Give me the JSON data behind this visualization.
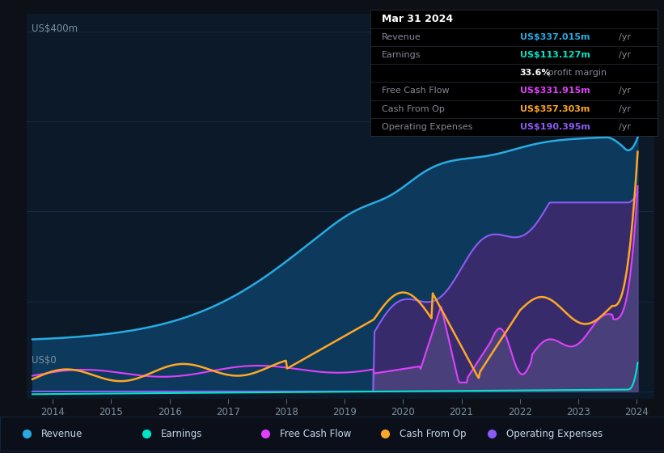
{
  "bg_color": "#0d1117",
  "plot_bg_color": "#0b1929",
  "grid_color": "#1a2e47",
  "title_date": "Mar 31 2024",
  "ylabel": "US$400m",
  "ylabel0": "US$0",
  "ylim": [
    -8,
    420
  ],
  "xlim": [
    2013.55,
    2024.3
  ],
  "xticks": [
    2014,
    2015,
    2016,
    2017,
    2018,
    2019,
    2020,
    2021,
    2022,
    2023,
    2024
  ],
  "revenue_color": "#29abe2",
  "revenue_fill": "#0d3a5c",
  "earnings_color": "#00e5c8",
  "fcf_color": "#e040fb",
  "cfo_color": "#ffa726",
  "opex_color": "#8b5cf6",
  "opex_fill": "#3d2a6e",
  "fcf_fill": "#5a5080",
  "legend": [
    {
      "label": "Revenue",
      "color": "#29abe2"
    },
    {
      "label": "Earnings",
      "color": "#00e5c8"
    },
    {
      "label": "Free Cash Flow",
      "color": "#e040fb"
    },
    {
      "label": "Cash From Op",
      "color": "#ffa726"
    },
    {
      "label": "Operating Expenses",
      "color": "#8b5cf6"
    }
  ]
}
